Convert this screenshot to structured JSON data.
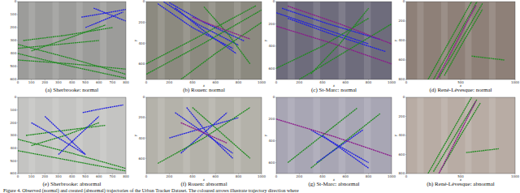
{
  "caption": "Figure 4. Observed (normal) and created (abnormal) trajectories of the Urban Tracker Dataset. The coloured arrows illustrate trajectory direction where",
  "chart_data": [
    {
      "type": "line",
      "title": "(a) Sherbrooke: normal",
      "xlim": [
        0,
        800
      ],
      "ylim": [
        600,
        0
      ],
      "xticks": [
        0,
        100,
        200,
        300,
        400,
        500,
        600,
        700,
        800
      ],
      "yticks": [
        0,
        100,
        200,
        300,
        400,
        500,
        600
      ],
      "series": [
        {
          "color": "#1f8a1f",
          "x": [
            0,
            400,
            800
          ],
          "values": [
            330,
            440,
            560
          ]
        },
        {
          "color": "#1f8a1f",
          "x": [
            0,
            400,
            800
          ],
          "values": [
            400,
            500,
            590
          ]
        },
        {
          "color": "#1f8a1f",
          "x": [
            0,
            400,
            800
          ],
          "values": [
            450,
            480,
            520
          ]
        },
        {
          "color": "#1f8a1f",
          "x": [
            40,
            350,
            700
          ],
          "values": [
            300,
            260,
            200
          ]
        },
        {
          "color": "#1f8a1f",
          "x": [
            100,
            380,
            650
          ],
          "values": [
            380,
            280,
            180
          ]
        },
        {
          "color": "#1f8a1f",
          "x": [
            0,
            300,
            600
          ],
          "values": [
            360,
            330,
            300
          ]
        },
        {
          "color": "#2020e0",
          "x": [
            470,
            640,
            800
          ],
          "values": [
            120,
            90,
            60
          ]
        },
        {
          "color": "#2020e0",
          "x": [
            500,
            640,
            780
          ],
          "values": [
            200,
            140,
            80
          ]
        },
        {
          "color": "#2020e0",
          "x": [
            560,
            680,
            800
          ],
          "values": [
            50,
            100,
            150
          ]
        }
      ]
    },
    {
      "type": "line",
      "title": "(b) Rouen: normal",
      "xlabel": "x",
      "ylabel": "y",
      "xlim": [
        0,
        1000
      ],
      "ylim": [
        750,
        0
      ],
      "xticks": [
        0,
        200,
        400,
        600,
        800,
        1000
      ],
      "yticks": [
        0,
        200,
        400,
        600
      ],
      "series": [
        {
          "color": "#2020e0",
          "x": [
            100,
            400,
            750
          ],
          "values": [
            20,
            250,
            450
          ]
        },
        {
          "color": "#2020e0",
          "x": [
            150,
            450,
            800
          ],
          "values": [
            0,
            220,
            420
          ]
        },
        {
          "color": "#2020e0",
          "x": [
            200,
            500,
            850
          ],
          "values": [
            10,
            200,
            380
          ]
        },
        {
          "color": "#2020e0",
          "x": [
            250,
            520,
            780
          ],
          "values": [
            60,
            300,
            500
          ]
        },
        {
          "color": "#1f8a1f",
          "x": [
            0,
            500,
            1000
          ],
          "values": [
            700,
            400,
            80
          ]
        },
        {
          "color": "#1f8a1f",
          "x": [
            0,
            450,
            950
          ],
          "values": [
            600,
            340,
            40
          ]
        },
        {
          "color": "#1f8a1f",
          "x": [
            300,
            600,
            1000
          ],
          "values": [
            750,
            500,
            200
          ]
        },
        {
          "color": "#1f8a1f",
          "x": [
            500,
            700,
            900
          ],
          "values": [
            50,
            300,
            600
          ]
        },
        {
          "color": "#8b1a8b",
          "x": [
            400,
            650,
            900
          ],
          "values": [
            150,
            260,
            360
          ]
        }
      ]
    },
    {
      "type": "line",
      "title": "(c) St-Marc: normal",
      "xlabel": "x",
      "ylabel": "y",
      "xlim": [
        0,
        1000
      ],
      "ylim": [
        700,
        0
      ],
      "xticks": [
        0,
        200,
        400,
        600,
        800,
        1000
      ],
      "yticks": [
        0,
        200,
        400,
        600
      ],
      "series": [
        {
          "color": "#2020e0",
          "x": [
            50,
            450,
            900
          ],
          "values": [
            60,
            200,
            340
          ]
        },
        {
          "color": "#2020e0",
          "x": [
            100,
            500,
            950
          ],
          "values": [
            150,
            300,
            450
          ]
        },
        {
          "color": "#2020e0",
          "x": [
            0,
            400,
            800
          ],
          "values": [
            100,
            240,
            380
          ]
        },
        {
          "color": "#1f8a1f",
          "x": [
            0,
            400,
            800
          ],
          "values": [
            600,
            400,
            150
          ]
        },
        {
          "color": "#1f8a1f",
          "x": [
            200,
            600,
            1000
          ],
          "values": [
            700,
            450,
            200
          ]
        },
        {
          "color": "#1f8a1f",
          "x": [
            300,
            550,
            800
          ],
          "values": [
            650,
            380,
            60
          ]
        },
        {
          "color": "#8b1a8b",
          "x": [
            0,
            500,
            1000
          ],
          "values": [
            220,
            380,
            560
          ]
        },
        {
          "color": "#8b1a8b",
          "x": [
            100,
            550,
            1000
          ],
          "values": [
            40,
            200,
            380
          ]
        }
      ]
    },
    {
      "type": "line",
      "title": "(d) René-Lévesque: normal",
      "xlabel": "x",
      "ylabel": "y",
      "xlim": [
        0,
        1000
      ],
      "ylim": [
        800,
        0
      ],
      "xticks": [
        0,
        500,
        1000
      ],
      "yticks": [
        0,
        200,
        400,
        600,
        800
      ],
      "series": [
        {
          "color": "#1f8a1f",
          "x": [
            200,
            400,
            600
          ],
          "values": [
            800,
            400,
            0
          ]
        },
        {
          "color": "#1f8a1f",
          "x": [
            250,
            450,
            650
          ],
          "values": [
            800,
            400,
            0
          ]
        },
        {
          "color": "#1f8a1f",
          "x": [
            300,
            500,
            700
          ],
          "values": [
            780,
            400,
            20
          ]
        },
        {
          "color": "#1f8a1f",
          "x": [
            350,
            520,
            700
          ],
          "values": [
            760,
            420,
            80
          ]
        },
        {
          "color": "#1f8a1f",
          "x": [
            600,
            750,
            900
          ],
          "values": [
            560,
            580,
            600
          ]
        },
        {
          "color": "#8b1a8b",
          "x": [
            280,
            460,
            640
          ],
          "values": [
            800,
            420,
            40
          ]
        }
      ]
    },
    {
      "type": "line",
      "title": "(e) Sherbrooke: abnormal",
      "xlim": [
        0,
        800
      ],
      "ylim": [
        600,
        0
      ],
      "xticks": [
        0,
        100,
        200,
        300,
        400,
        500,
        600,
        700,
        800
      ],
      "yticks": [
        0,
        100,
        200,
        300,
        400,
        500,
        600
      ],
      "series": [
        {
          "color": "#1f8a1f",
          "x": [
            0,
            400,
            800
          ],
          "values": [
            330,
            440,
            560
          ]
        },
        {
          "color": "#1f8a1f",
          "x": [
            0,
            400,
            800
          ],
          "values": [
            420,
            500,
            580
          ]
        },
        {
          "color": "#1f8a1f",
          "x": [
            60,
            350,
            650
          ],
          "values": [
            300,
            260,
            220
          ]
        },
        {
          "color": "#1f8a1f",
          "x": [
            100,
            350,
            600
          ],
          "values": [
            380,
            300,
            200
          ]
        },
        {
          "color": "#2020e0",
          "x": [
            100,
            300,
            500
          ],
          "values": [
            200,
            320,
            450
          ]
        },
        {
          "color": "#2020e0",
          "x": [
            200,
            350,
            500
          ],
          "values": [
            150,
            300,
            450
          ]
        },
        {
          "color": "#2020e0",
          "x": [
            480,
            620,
            780
          ],
          "values": [
            120,
            90,
            60
          ]
        },
        {
          "color": "#2020e0",
          "x": [
            300,
            450,
            600
          ],
          "values": [
            450,
            300,
            150
          ]
        }
      ]
    },
    {
      "type": "line",
      "title": "(f) Rouen: abnormal",
      "xlabel": "x",
      "ylabel": "y",
      "xlim": [
        0,
        1000
      ],
      "ylim": [
        750,
        0
      ],
      "xticks": [
        0,
        200,
        400,
        600,
        800,
        1000
      ],
      "yticks": [
        0,
        200,
        400,
        600
      ],
      "series": [
        {
          "color": "#2020e0",
          "x": [
            250,
            500,
            750
          ],
          "values": [
            150,
            350,
            550
          ]
        },
        {
          "color": "#2020e0",
          "x": [
            300,
            500,
            700
          ],
          "values": [
            550,
            350,
            150
          ]
        },
        {
          "color": "#2020e0",
          "x": [
            350,
            550,
            750
          ],
          "values": [
            100,
            380,
            600
          ]
        },
        {
          "color": "#2020e0",
          "x": [
            200,
            500,
            800
          ],
          "values": [
            400,
            300,
            200
          ]
        },
        {
          "color": "#1f8a1f",
          "x": [
            100,
            500,
            900
          ],
          "values": [
            650,
            400,
            100
          ]
        },
        {
          "color": "#1f8a1f",
          "x": [
            400,
            650,
            900
          ],
          "values": [
            100,
            350,
            600
          ]
        },
        {
          "color": "#8b1a8b",
          "x": [
            300,
            500,
            700
          ],
          "values": [
            250,
            350,
            450
          ]
        }
      ]
    },
    {
      "type": "line",
      "title": "(g) St-Marc: abnormal",
      "xlabel": "x",
      "ylabel": "y",
      "xlim": [
        0,
        1000
      ],
      "ylim": [
        700,
        0
      ],
      "xticks": [
        0,
        200,
        400,
        600,
        800,
        1000
      ],
      "yticks": [
        0,
        200,
        400,
        600
      ],
      "series": [
        {
          "color": "#1f8a1f",
          "x": [
            100,
            400,
            700
          ],
          "values": [
            600,
            350,
            100
          ]
        },
        {
          "color": "#1f8a1f",
          "x": [
            300,
            600,
            900
          ],
          "values": [
            650,
            400,
            150
          ]
        },
        {
          "color": "#2020e0",
          "x": [
            300,
            550,
            800
          ],
          "values": [
            300,
            450,
            600
          ]
        },
        {
          "color": "#2020e0",
          "x": [
            350,
            550,
            750
          ],
          "values": [
            600,
            450,
            300
          ]
        },
        {
          "color": "#2020e0",
          "x": [
            400,
            600,
            800
          ],
          "values": [
            350,
            500,
            650
          ]
        },
        {
          "color": "#8b1a8b",
          "x": [
            0,
            500,
            1000
          ],
          "values": [
            200,
            360,
            540
          ]
        }
      ]
    },
    {
      "type": "line",
      "title": "(h) René-Lévesque: abnormal",
      "xlabel": "x",
      "ylabel": "y",
      "xlim": [
        0,
        1000
      ],
      "ylim": [
        800,
        0
      ],
      "xticks": [
        0,
        500,
        1000
      ],
      "yticks": [
        0,
        200,
        400,
        600,
        800
      ],
      "series": [
        {
          "color": "#1f8a1f",
          "x": [
            200,
            400,
            600
          ],
          "values": [
            800,
            400,
            0
          ]
        },
        {
          "color": "#1f8a1f",
          "x": [
            250,
            450,
            650
          ],
          "values": [
            780,
            400,
            20
          ]
        },
        {
          "color": "#1f8a1f",
          "x": [
            320,
            500,
            680
          ],
          "values": [
            760,
            400,
            60
          ]
        },
        {
          "color": "#1f8a1f",
          "x": [
            550,
            700,
            850
          ],
          "values": [
            580,
            560,
            540
          ]
        },
        {
          "color": "#8b1a8b",
          "x": [
            300,
            470,
            640
          ],
          "values": [
            800,
            420,
            40
          ]
        }
      ]
    }
  ]
}
